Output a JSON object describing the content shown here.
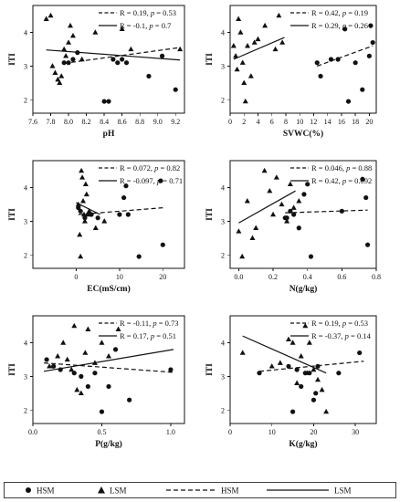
{
  "legend": {
    "hsm_point": "HSM",
    "lsm_point": "LSM",
    "hsm_line": "HSM",
    "lsm_line": "LSM"
  },
  "chart_data": [
    {
      "type": "scatter",
      "panel": "pH",
      "xlabel": "pH",
      "ylabel": "ITI",
      "xlim": [
        7.6,
        9.3
      ],
      "ylim": [
        1.6,
        4.8
      ],
      "xticks": [
        7.6,
        7.8,
        8.0,
        8.2,
        8.4,
        8.6,
        8.8,
        9.0,
        9.2
      ],
      "xticklabels": [
        "7.6",
        "7.8",
        "8.0",
        "8.2",
        "8.4",
        "8.6",
        "8.8",
        "9.0",
        "9.2"
      ],
      "yticks": [
        2,
        3,
        4
      ],
      "yticklabels": [
        "2",
        "3",
        "4"
      ],
      "stats": [
        {
          "group": "HSM",
          "r_text": "R = 0.19, ",
          "p_label": "p",
          "p_text": " = 0.53"
        },
        {
          "group": "LSM",
          "r_text": "R = -0.1, ",
          "p_label": "p",
          "p_text": " = 0.7"
        }
      ],
      "series": [
        {
          "name": "HSM",
          "marker": "circle",
          "x": [
            7.95,
            8.0,
            8.05,
            8.1,
            8.4,
            8.45,
            8.5,
            8.55,
            8.6,
            8.65,
            8.9,
            9.05,
            9.2
          ],
          "y": [
            3.1,
            3.1,
            3.2,
            3.4,
            1.95,
            1.95,
            3.2,
            3.1,
            3.2,
            3.1,
            2.7,
            3.3,
            2.3
          ]
        },
        {
          "name": "LSM",
          "marker": "triangle",
          "x": [
            7.75,
            7.8,
            7.82,
            7.85,
            7.88,
            7.9,
            7.92,
            7.95,
            7.97,
            8.0,
            8.02,
            8.05,
            8.15,
            8.3,
            8.6,
            8.7,
            9.25
          ],
          "y": [
            4.4,
            4.5,
            3.0,
            2.8,
            2.6,
            2.5,
            2.7,
            3.5,
            3.3,
            3.7,
            4.2,
            3.9,
            3.2,
            4.0,
            4.1,
            3.5,
            3.5
          ]
        }
      ],
      "trendlines": [
        {
          "name": "HSM",
          "style": "dashed",
          "x": [
            7.95,
            9.25
          ],
          "y": [
            3.08,
            3.55
          ]
        },
        {
          "name": "LSM",
          "style": "solid",
          "x": [
            7.75,
            9.25
          ],
          "y": [
            3.48,
            3.18
          ]
        }
      ]
    },
    {
      "type": "scatter",
      "panel": "SVWC",
      "xlabel": "SVWC(%)",
      "ylabel": "ITI",
      "xlim": [
        0,
        21
      ],
      "ylim": [
        1.6,
        4.8
      ],
      "xticks": [
        0,
        2,
        4,
        6,
        8,
        10,
        12,
        14,
        16,
        18,
        20
      ],
      "xticklabels": [
        "0",
        "2",
        "4",
        "6",
        "8",
        "10",
        "12",
        "14",
        "16",
        "18",
        "20"
      ],
      "yticks": [
        2,
        3,
        4
      ],
      "yticklabels": [
        "2",
        "3",
        "4"
      ],
      "stats": [
        {
          "group": "HSM",
          "r_text": "R = 0.42, ",
          "p_label": "p",
          "p_text": " = 0.19"
        },
        {
          "group": "LSM",
          "r_text": "R = 0.29, ",
          "p_label": "p",
          "p_text": " = 0.26"
        }
      ],
      "series": [
        {
          "name": "HSM",
          "marker": "circle",
          "x": [
            12.5,
            13.0,
            14.5,
            15.5,
            16.5,
            17.0,
            18.0,
            19.0,
            20.0,
            20.2,
            20.5
          ],
          "y": [
            3.1,
            2.7,
            3.2,
            3.2,
            4.1,
            1.95,
            3.1,
            2.3,
            3.3,
            4.2,
            3.7
          ]
        },
        {
          "name": "LSM",
          "marker": "triangle",
          "x": [
            0.5,
            0.8,
            1.0,
            1.2,
            1.5,
            1.8,
            2.0,
            2.2,
            2.5,
            3.0,
            3.5,
            4.0,
            5.0,
            6.5,
            7.0,
            7.5
          ],
          "y": [
            3.6,
            3.3,
            2.9,
            4.4,
            4.0,
            3.1,
            2.5,
            1.95,
            3.6,
            2.7,
            3.7,
            3.8,
            4.2,
            3.5,
            4.5,
            3.7
          ]
        }
      ],
      "trendlines": [
        {
          "name": "HSM",
          "style": "dashed",
          "x": [
            12.5,
            20.5
          ],
          "y": [
            3.0,
            3.6
          ]
        },
        {
          "name": "LSM",
          "style": "solid",
          "x": [
            0.5,
            7.8
          ],
          "y": [
            3.2,
            3.85
          ]
        }
      ]
    },
    {
      "type": "scatter",
      "panel": "EC",
      "xlabel": "EC(mS/cm)",
      "ylabel": "ITI",
      "xlim": [
        -10,
        25
      ],
      "ylim": [
        1.6,
        4.8
      ],
      "xticks": [
        0,
        10,
        20
      ],
      "xticklabels": [
        "0",
        "10",
        "20"
      ],
      "yticks": [
        2,
        3,
        4
      ],
      "yticklabels": [
        "2",
        "3",
        "4"
      ],
      "stats": [
        {
          "group": "HSM",
          "r_text": "R = 0.072, ",
          "p_label": "p",
          "p_text": " = 0.82"
        },
        {
          "group": "LSM",
          "r_text": "R = -0.097, ",
          "p_label": "p",
          "p_text": " = 0.71"
        }
      ],
      "series": [
        {
          "name": "HSM",
          "marker": "circle",
          "x": [
            0.5,
            1.0,
            2.0,
            3.5,
            5.0,
            10.0,
            11.0,
            11.5,
            12.0,
            14.5,
            19.5,
            20.0
          ],
          "y": [
            3.4,
            3.3,
            3.1,
            3.2,
            3.1,
            3.2,
            3.7,
            4.05,
            3.2,
            1.95,
            4.2,
            2.3
          ]
        },
        {
          "name": "LSM",
          "marker": "triangle",
          "x": [
            0.5,
            0.8,
            1.0,
            1.2,
            1.4,
            1.6,
            1.8,
            2.0,
            2.2,
            2.4,
            2.6,
            3.0,
            4.5,
            6.5
          ],
          "y": [
            3.5,
            2.6,
            1.95,
            4.5,
            4.3,
            3.6,
            3.2,
            3.0,
            4.1,
            3.8,
            3.2,
            3.3,
            2.8,
            3.0
          ]
        }
      ],
      "trendlines": [
        {
          "name": "HSM",
          "style": "dashed",
          "x": [
            0.5,
            20.0
          ],
          "y": [
            3.2,
            3.4
          ]
        },
        {
          "name": "LSM",
          "style": "solid",
          "x": [
            0.0,
            5.5
          ],
          "y": [
            3.55,
            3.2
          ]
        }
      ]
    },
    {
      "type": "scatter",
      "panel": "N",
      "xlabel": "N(g/kg)",
      "ylabel": "ITI",
      "xlim": [
        -0.05,
        0.8
      ],
      "ylim": [
        1.6,
        4.8
      ],
      "xticks": [
        0.0,
        0.2,
        0.4,
        0.6,
        0.8
      ],
      "xticklabels": [
        "0.0",
        "0.2",
        "0.4",
        "0.6",
        "0.8"
      ],
      "yticks": [
        2,
        3,
        4
      ],
      "yticklabels": [
        "2",
        "3",
        "4"
      ],
      "stats": [
        {
          "group": "HSM",
          "r_text": "R = 0.046, ",
          "p_label": "p",
          "p_text": " = 0.88"
        },
        {
          "group": "LSM",
          "r_text": "R = 0.42, ",
          "p_label": "p",
          "p_text": " = 0.092"
        }
      ],
      "series": [
        {
          "name": "HSM",
          "marker": "circle",
          "x": [
            0.27,
            0.28,
            0.3,
            0.32,
            0.35,
            0.38,
            0.4,
            0.42,
            0.6,
            0.72,
            0.74,
            0.75
          ],
          "y": [
            3.1,
            3.1,
            3.3,
            3.2,
            2.8,
            3.8,
            4.1,
            1.95,
            3.3,
            4.25,
            3.7,
            2.3
          ]
        },
        {
          "name": "LSM",
          "marker": "triangle",
          "x": [
            0.0,
            0.02,
            0.05,
            0.08,
            0.1,
            0.15,
            0.18,
            0.2,
            0.22,
            0.25,
            0.28,
            0.3,
            0.32,
            0.35
          ],
          "y": [
            2.7,
            1.95,
            3.6,
            2.5,
            2.8,
            4.5,
            3.9,
            3.2,
            4.3,
            3.5,
            3.0,
            4.1,
            3.4,
            3.6
          ]
        }
      ],
      "trendlines": [
        {
          "name": "HSM",
          "style": "dashed",
          "x": [
            0.27,
            0.75
          ],
          "y": [
            3.25,
            3.33
          ]
        },
        {
          "name": "LSM",
          "style": "solid",
          "x": [
            0.0,
            0.33
          ],
          "y": [
            2.95,
            3.9
          ]
        }
      ]
    },
    {
      "type": "scatter",
      "panel": "P",
      "xlabel": "P(g/kg)",
      "ylabel": "ITI",
      "xlim": [
        0.0,
        1.1
      ],
      "ylim": [
        1.6,
        4.8
      ],
      "xticks": [
        0.0,
        0.5,
        1.0
      ],
      "xticklabels": [
        "0.0",
        "0.5",
        "1.0"
      ],
      "yticks": [
        2,
        3,
        4
      ],
      "yticklabels": [
        "2",
        "3",
        "4"
      ],
      "stats": [
        {
          "group": "HSM",
          "r_text": "R = -0.11, ",
          "p_label": "p",
          "p_text": " = 0.73"
        },
        {
          "group": "LSM",
          "r_text": "R = 0.17, ",
          "p_label": "p",
          "p_text": " = 0.51"
        }
      ],
      "series": [
        {
          "name": "HSM",
          "marker": "circle",
          "x": [
            0.1,
            0.15,
            0.2,
            0.3,
            0.35,
            0.4,
            0.45,
            0.5,
            0.55,
            0.6,
            0.7,
            1.0
          ],
          "y": [
            3.5,
            3.3,
            3.2,
            3.1,
            3.0,
            2.7,
            3.1,
            1.95,
            2.7,
            3.8,
            2.3,
            3.2
          ]
        },
        {
          "name": "LSM",
          "marker": "triangle",
          "x": [
            0.12,
            0.18,
            0.22,
            0.25,
            0.28,
            0.3,
            0.32,
            0.35,
            0.38,
            0.4,
            0.45,
            0.5,
            0.55,
            0.62
          ],
          "y": [
            3.3,
            3.6,
            4.0,
            3.5,
            3.2,
            4.5,
            2.6,
            2.5,
            3.7,
            4.4,
            3.4,
            4.0,
            3.6,
            4.4
          ]
        }
      ],
      "trendlines": [
        {
          "name": "HSM",
          "style": "dashed",
          "x": [
            0.08,
            1.02
          ],
          "y": [
            3.4,
            3.12
          ]
        },
        {
          "name": "LSM",
          "style": "solid",
          "x": [
            0.08,
            1.02
          ],
          "y": [
            3.15,
            3.8
          ]
        }
      ]
    },
    {
      "type": "scatter",
      "panel": "K",
      "xlabel": "K(g/kg)",
      "ylabel": "ITI",
      "xlim": [
        0,
        35
      ],
      "ylim": [
        1.6,
        4.8
      ],
      "xticks": [
        0,
        10,
        20,
        30
      ],
      "xticklabels": [
        "0",
        "10",
        "20",
        "30"
      ],
      "yticks": [
        2,
        3,
        4
      ],
      "yticklabels": [
        "2",
        "3",
        "4"
      ],
      "stats": [
        {
          "group": "HSM",
          "r_text": "R = 0.19, ",
          "p_label": "p",
          "p_text": " = 0.53"
        },
        {
          "group": "LSM",
          "r_text": "R = -0.37, ",
          "p_label": "p",
          "p_text": " = 0.14"
        }
      ],
      "series": [
        {
          "name": "HSM",
          "marker": "circle",
          "x": [
            7.0,
            14.0,
            15.0,
            16.0,
            17.0,
            18.0,
            19.0,
            20.0,
            20.5,
            21.0,
            26.0,
            31.0
          ],
          "y": [
            3.1,
            3.3,
            1.95,
            3.2,
            2.7,
            3.1,
            3.1,
            2.3,
            2.5,
            3.3,
            3.1,
            3.7
          ]
        },
        {
          "name": "LSM",
          "marker": "triangle",
          "x": [
            3.0,
            10.0,
            12.0,
            14.0,
            15.0,
            16.0,
            17.0,
            18.0,
            18.5,
            19.0,
            20.0,
            21.0,
            22.0,
            23.0
          ],
          "y": [
            3.7,
            3.3,
            3.4,
            4.1,
            4.0,
            2.8,
            3.6,
            4.5,
            3.1,
            4.0,
            3.2,
            2.9,
            2.6,
            1.95
          ]
        }
      ],
      "trendlines": [
        {
          "name": "HSM",
          "style": "dashed",
          "x": [
            7.0,
            32.0
          ],
          "y": [
            3.15,
            3.45
          ]
        },
        {
          "name": "LSM",
          "style": "solid",
          "x": [
            3.0,
            23.0
          ],
          "y": [
            4.2,
            3.1
          ]
        }
      ]
    }
  ]
}
